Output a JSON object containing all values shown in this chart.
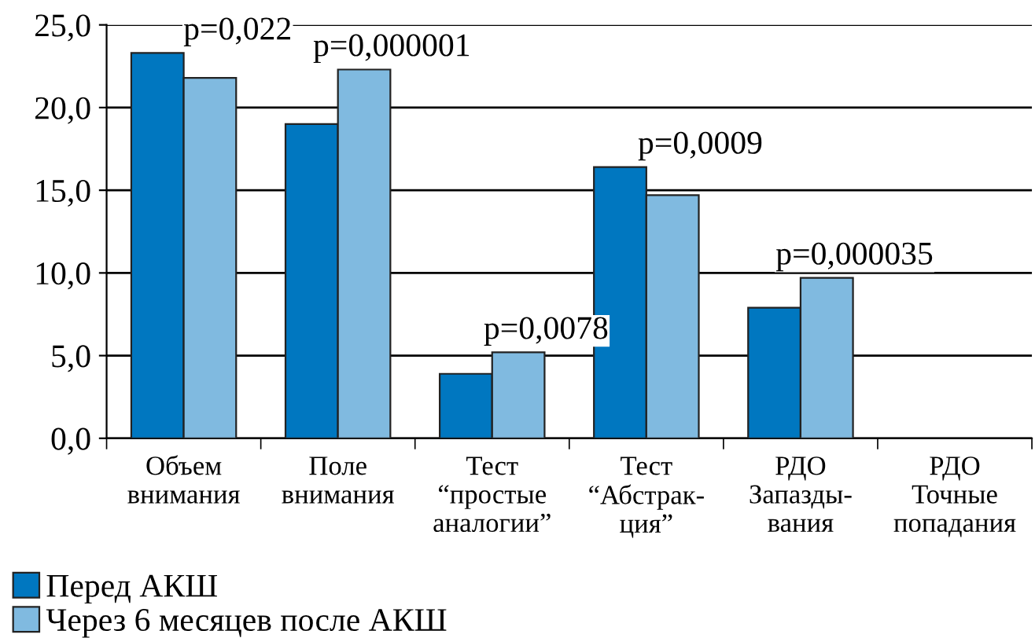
{
  "chart_data": {
    "type": "bar",
    "categories": [
      "Объем\nвнимания",
      "Поле\nвнимания",
      "Тест\n“простые\nаналогии”",
      "Тест\n“Абстрак-\nция”",
      "РДО\nЗапазды-\nвания",
      "РДО\nТочные\nпопадания"
    ],
    "series": [
      {
        "name": "Перед АКШ",
        "color": "#0077c0",
        "values": [
          23.3,
          19.0,
          3.9,
          16.4,
          7.9,
          null
        ]
      },
      {
        "name": "Через 6 месяцев после АКШ",
        "color": "#80bae0",
        "values": [
          21.8,
          22.3,
          5.2,
          14.7,
          9.7,
          null
        ]
      }
    ],
    "ylim": [
      0,
      25
    ],
    "yticks": [
      {
        "value": 0,
        "label": "0,0"
      },
      {
        "value": 5,
        "label": "5,0"
      },
      {
        "value": 10,
        "label": "10,0"
      },
      {
        "value": 15,
        "label": "15,0"
      },
      {
        "value": 20,
        "label": "20,0"
      },
      {
        "value": 25,
        "label": "25,0"
      }
    ],
    "grid": "y",
    "legend": "bottom left",
    "annotations": [
      "p=0,022",
      "p=0,000001",
      "p=0,0078",
      "p=0,0009",
      "p=0,000035"
    ]
  }
}
